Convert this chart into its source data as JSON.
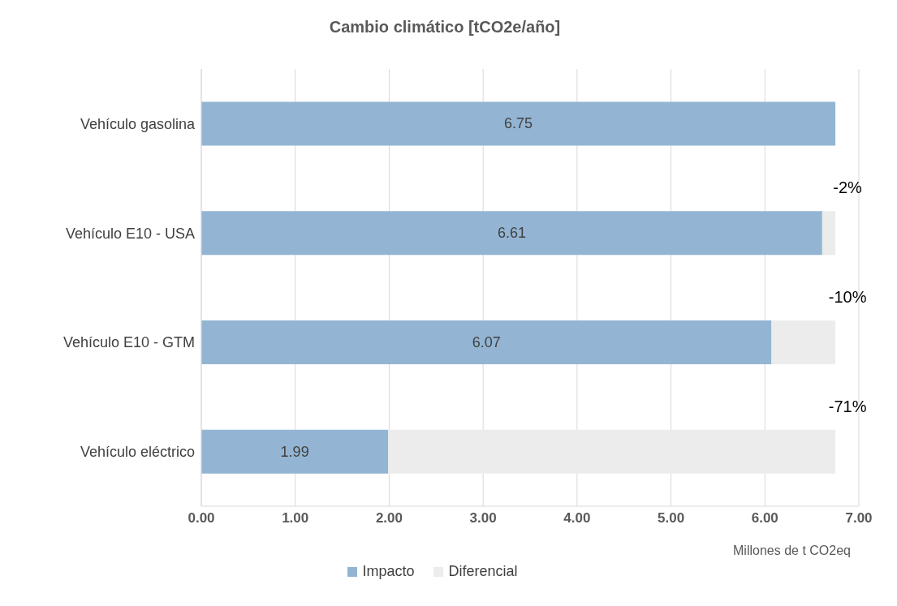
{
  "chart_data": {
    "type": "bar",
    "orientation": "horizontal",
    "stacked": true,
    "title": "Cambio climático [tCO2e/año]",
    "xlabel": "Millones de t CO2eq",
    "categories": [
      "Vehículo gasolina",
      "Vehículo E10 - USA",
      "Vehículo E10 - GTM",
      "Vehículo eléctrico"
    ],
    "series": [
      {
        "name": "Impacto",
        "color": "#93b5d3",
        "values": [
          6.75,
          6.61,
          6.07,
          1.99
        ],
        "value_labels": [
          "6.75",
          "6.61",
          "6.07",
          "1.99"
        ]
      },
      {
        "name": "Diferencial",
        "color": "#ececec",
        "values": [
          0,
          0.14,
          0.68,
          4.76
        ]
      }
    ],
    "xlim": [
      0,
      7
    ],
    "xticks": [
      {
        "value": 0,
        "label": "0.00"
      },
      {
        "value": 1,
        "label": "1.00"
      },
      {
        "value": 2,
        "label": "2.00"
      },
      {
        "value": 3,
        "label": "3.00"
      },
      {
        "value": 4,
        "label": "4.00"
      },
      {
        "value": 5,
        "label": "5.00"
      },
      {
        "value": 6,
        "label": "6.00"
      },
      {
        "value": 7,
        "label": "7.00"
      }
    ],
    "grid": "x",
    "legend": "bottom",
    "annotations": [
      "-2%",
      "-10%",
      "-71%"
    ]
  }
}
